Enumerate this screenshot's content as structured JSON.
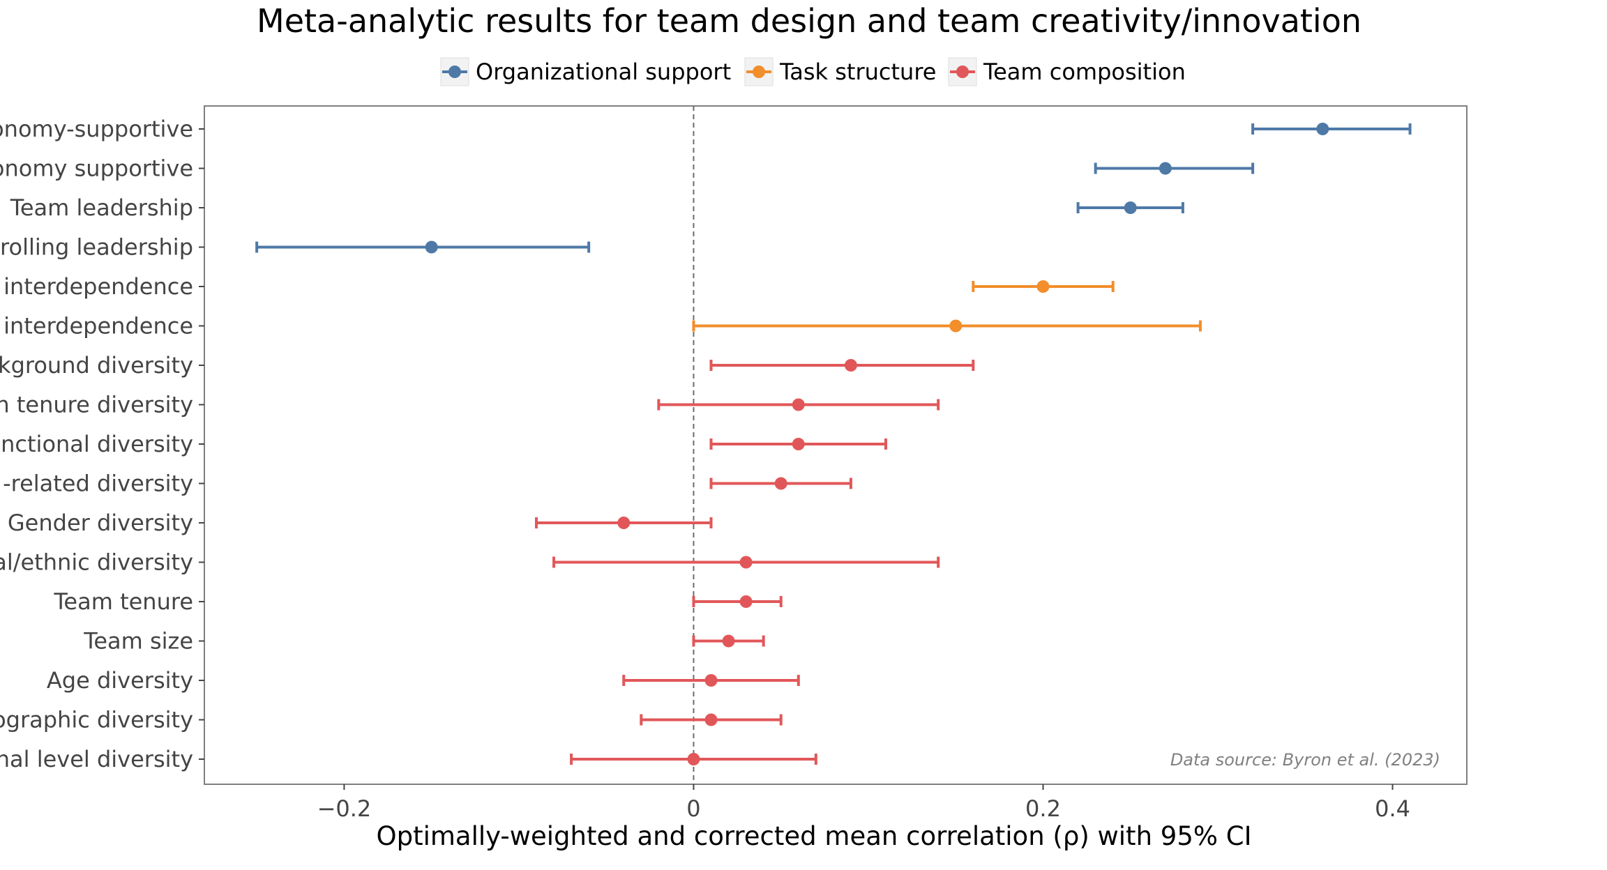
{
  "chart_data": {
    "type": "scatter",
    "title": "Meta-analytic results for team design and team creativity/innovation",
    "xlabel": "Optimally-weighted and corrected mean correlation (ρ) with 95% CI",
    "ylabel": "",
    "xlim": [
      -0.28,
      0.4425
    ],
    "x_ticks": [
      -0.2,
      0,
      0.2,
      0.4
    ],
    "x_tick_labels": [
      "−0.2",
      "0",
      "0.2",
      "0.4"
    ],
    "reference_line_x": 0,
    "grid": false,
    "legend_position": "top",
    "annotation": "Data source: Byron et al. (2023)",
    "series": [
      {
        "name": "Organizational support",
        "color": "#4e79a7"
      },
      {
        "name": "Task structure",
        "color": "#f28e2b"
      },
      {
        "name": "Team composition",
        "color": "#e15759"
      }
    ],
    "categories": [
      "onomy-supportive",
      "onomy supportive",
      "Team leadership",
      "rolling leadership",
      "interdependence",
      "interdependence",
      "kground diversity",
      "n tenure diversity",
      "nctional diversity",
      "-related diversity",
      "Gender diversity",
      "al/ethnic diversity",
      "Team tenure",
      "Team size",
      "Age diversity",
      "ographic diversity",
      "nal level diversity"
    ],
    "points": [
      {
        "series": 0,
        "estimate": 0.36,
        "ci_low": 0.32,
        "ci_high": 0.41
      },
      {
        "series": 0,
        "estimate": 0.27,
        "ci_low": 0.23,
        "ci_high": 0.32
      },
      {
        "series": 0,
        "estimate": 0.25,
        "ci_low": 0.22,
        "ci_high": 0.28
      },
      {
        "series": 0,
        "estimate": -0.15,
        "ci_low": -0.25,
        "ci_high": -0.06
      },
      {
        "series": 1,
        "estimate": 0.2,
        "ci_low": 0.16,
        "ci_high": 0.24
      },
      {
        "series": 1,
        "estimate": 0.15,
        "ci_low": 0.0,
        "ci_high": 0.29
      },
      {
        "series": 2,
        "estimate": 0.09,
        "ci_low": 0.01,
        "ci_high": 0.16
      },
      {
        "series": 2,
        "estimate": 0.06,
        "ci_low": -0.02,
        "ci_high": 0.14
      },
      {
        "series": 2,
        "estimate": 0.06,
        "ci_low": 0.01,
        "ci_high": 0.11
      },
      {
        "series": 2,
        "estimate": 0.05,
        "ci_low": 0.01,
        "ci_high": 0.09
      },
      {
        "series": 2,
        "estimate": -0.04,
        "ci_low": -0.09,
        "ci_high": 0.01
      },
      {
        "series": 2,
        "estimate": 0.03,
        "ci_low": -0.08,
        "ci_high": 0.14
      },
      {
        "series": 2,
        "estimate": 0.03,
        "ci_low": 0.0,
        "ci_high": 0.05
      },
      {
        "series": 2,
        "estimate": 0.02,
        "ci_low": 0.0,
        "ci_high": 0.04
      },
      {
        "series": 2,
        "estimate": 0.01,
        "ci_low": -0.04,
        "ci_high": 0.06
      },
      {
        "series": 2,
        "estimate": 0.01,
        "ci_low": -0.03,
        "ci_high": 0.05
      },
      {
        "series": 2,
        "estimate": 0.0,
        "ci_low": -0.07,
        "ci_high": 0.07
      }
    ]
  }
}
